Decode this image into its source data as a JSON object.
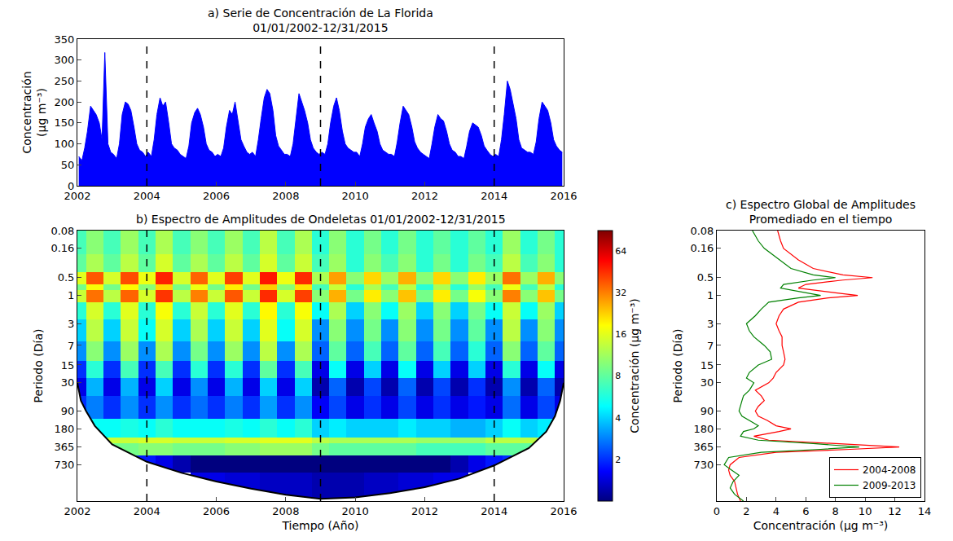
{
  "chart_data": [
    {
      "type": "area",
      "title": "a) Serie de Concentración de La Florida\n01/01/2002-12/31/2015",
      "ylabel": "Concentración\n(μg m⁻³)",
      "color": "#0000ff",
      "x": [
        2002.04,
        2002.13,
        2002.21,
        2002.29,
        2002.38,
        2002.46,
        2002.54,
        2002.63,
        2002.71,
        2002.79,
        2002.88,
        2002.96,
        2003.04,
        2003.13,
        2003.21,
        2003.29,
        2003.38,
        2003.46,
        2003.54,
        2003.63,
        2003.71,
        2003.79,
        2003.88,
        2003.96,
        2004.04,
        2004.13,
        2004.21,
        2004.29,
        2004.38,
        2004.46,
        2004.54,
        2004.63,
        2004.71,
        2004.79,
        2004.88,
        2004.96,
        2005.04,
        2005.13,
        2005.21,
        2005.29,
        2005.38,
        2005.46,
        2005.54,
        2005.63,
        2005.71,
        2005.79,
        2005.88,
        2005.96,
        2006.04,
        2006.13,
        2006.21,
        2006.29,
        2006.38,
        2006.46,
        2006.54,
        2006.63,
        2006.71,
        2006.79,
        2006.88,
        2006.96,
        2007.04,
        2007.13,
        2007.21,
        2007.29,
        2007.38,
        2007.46,
        2007.54,
        2007.63,
        2007.71,
        2007.79,
        2007.88,
        2007.96,
        2008.04,
        2008.13,
        2008.21,
        2008.29,
        2008.38,
        2008.46,
        2008.54,
        2008.63,
        2008.71,
        2008.79,
        2008.88,
        2008.96,
        2009.04,
        2009.13,
        2009.21,
        2009.29,
        2009.38,
        2009.46,
        2009.54,
        2009.63,
        2009.71,
        2009.79,
        2009.88,
        2009.96,
        2010.04,
        2010.13,
        2010.21,
        2010.29,
        2010.38,
        2010.46,
        2010.54,
        2010.63,
        2010.71,
        2010.79,
        2010.88,
        2010.96,
        2011.04,
        2011.13,
        2011.21,
        2011.29,
        2011.38,
        2011.46,
        2011.54,
        2011.63,
        2011.71,
        2011.79,
        2011.88,
        2011.96,
        2012.04,
        2012.13,
        2012.21,
        2012.29,
        2012.38,
        2012.46,
        2012.54,
        2012.63,
        2012.71,
        2012.79,
        2012.88,
        2012.96,
        2013.04,
        2013.13,
        2013.21,
        2013.29,
        2013.38,
        2013.46,
        2013.54,
        2013.63,
        2013.71,
        2013.79,
        2013.88,
        2013.96,
        2014.04,
        2014.13,
        2014.21,
        2014.29,
        2014.38,
        2014.46,
        2014.54,
        2014.63,
        2014.71,
        2014.79,
        2014.88,
        2014.96,
        2015.04,
        2015.13,
        2015.21,
        2015.29,
        2015.38,
        2015.46,
        2015.54,
        2015.63,
        2015.71,
        2015.79,
        2015.88,
        2015.96
      ],
      "values": [
        70,
        60,
        90,
        130,
        190,
        180,
        170,
        150,
        110,
        318,
        100,
        80,
        75,
        65,
        100,
        170,
        200,
        195,
        180,
        140,
        100,
        85,
        80,
        70,
        80,
        70,
        110,
        170,
        210,
        190,
        200,
        150,
        100,
        90,
        85,
        75,
        70,
        65,
        95,
        150,
        175,
        185,
        170,
        140,
        100,
        85,
        80,
        70,
        75,
        70,
        90,
        140,
        180,
        170,
        200,
        150,
        110,
        95,
        80,
        75,
        80,
        70,
        110,
        160,
        210,
        230,
        220,
        180,
        120,
        95,
        85,
        75,
        75,
        70,
        100,
        160,
        220,
        200,
        180,
        150,
        110,
        90,
        80,
        75,
        80,
        75,
        100,
        150,
        190,
        210,
        180,
        130,
        100,
        90,
        85,
        80,
        80,
        70,
        100,
        140,
        160,
        170,
        150,
        130,
        100,
        85,
        80,
        75,
        75,
        70,
        105,
        150,
        190,
        180,
        170,
        140,
        105,
        90,
        80,
        75,
        70,
        65,
        100,
        140,
        170,
        160,
        155,
        130,
        100,
        85,
        80,
        70,
        70,
        65,
        95,
        130,
        150,
        145,
        140,
        120,
        95,
        85,
        75,
        70,
        75,
        70,
        110,
        170,
        250,
        230,
        200,
        160,
        110,
        90,
        85,
        80,
        80,
        75,
        105,
        160,
        200,
        190,
        180,
        150,
        110,
        95,
        85,
        80
      ],
      "xlim": [
        2002,
        2016
      ],
      "xticks": [
        2002,
        2004,
        2006,
        2008,
        2010,
        2012,
        2014,
        2016
      ],
      "ylim": [
        0,
        350
      ],
      "yticks": [
        0,
        50,
        100,
        150,
        200,
        250,
        300,
        350
      ],
      "vlines": [
        2004,
        2009,
        2014
      ]
    },
    {
      "type": "heatmap",
      "title": "b) Espectro de Amplitudes de Ondeletas 01/01/2002-12/31/2015",
      "xlabel": "Tiempo (Año)",
      "ylabel": "Periodo (Día)",
      "log": "y",
      "time_bins": [
        2002,
        2002.25,
        2002.75,
        2003.25,
        2003.75,
        2004.25,
        2004.75,
        2005.25,
        2005.75,
        2006.25,
        2006.75,
        2007.25,
        2007.75,
        2008.25,
        2008.75,
        2009.25,
        2009.75,
        2010.25,
        2010.75,
        2011.25,
        2011.75,
        2012.25,
        2012.75,
        2013.25,
        2013.75,
        2014.25,
        2014.75,
        2015.25,
        2015.75,
        2016
      ],
      "period_bins": [
        0.08,
        0.2,
        0.4,
        0.65,
        0.8,
        1.3,
        2.5,
        6,
        13,
        25,
        50,
        120,
        250,
        320,
        500,
        1000,
        3000
      ],
      "cells": [
        [
          7,
          10,
          7,
          11,
          7,
          12,
          7,
          10,
          7,
          11,
          7,
          13,
          7,
          12,
          6,
          10,
          6,
          9,
          6,
          9,
          6,
          8,
          6,
          8,
          6,
          11,
          6,
          9,
          6
        ],
        [
          8,
          12,
          8,
          13,
          8,
          15,
          8,
          12,
          8,
          13,
          8,
          15,
          8,
          14,
          7,
          11,
          6,
          10,
          7,
          10,
          6,
          9,
          6,
          9,
          7,
          13,
          7,
          10,
          6
        ],
        [
          16,
          38,
          15,
          40,
          17,
          48,
          15,
          36,
          16,
          42,
          16,
          50,
          17,
          46,
          12,
          28,
          10,
          22,
          11,
          26,
          10,
          22,
          10,
          20,
          11,
          34,
          11,
          26,
          10
        ],
        [
          9,
          18,
          9,
          19,
          10,
          22,
          9,
          17,
          9,
          20,
          9,
          23,
          10,
          21,
          7,
          14,
          6,
          12,
          7,
          13,
          6,
          12,
          6,
          11,
          7,
          17,
          7,
          13,
          6
        ],
        [
          14,
          34,
          13,
          36,
          15,
          44,
          13,
          32,
          14,
          38,
          14,
          46,
          15,
          42,
          10,
          26,
          9,
          20,
          10,
          24,
          9,
          20,
          9,
          18,
          10,
          32,
          10,
          24,
          9
        ],
        [
          6,
          15,
          6,
          16,
          6,
          18,
          6,
          14,
          6,
          16,
          6,
          19,
          6,
          18,
          5,
          12,
          4,
          10,
          5,
          11,
          4,
          10,
          4,
          9,
          5,
          14,
          5,
          11,
          4
        ],
        [
          4,
          13,
          4,
          14,
          5,
          15,
          4,
          12,
          4,
          14,
          4,
          16,
          5,
          15,
          3,
          10,
          3,
          9,
          3,
          10,
          3,
          9,
          3,
          8,
          3,
          13,
          3,
          10,
          3
        ],
        [
          3,
          10,
          3,
          11,
          3,
          12,
          3,
          9,
          3,
          11,
          3,
          13,
          3,
          12,
          2.5,
          8,
          2.5,
          7,
          2.5,
          8,
          2.5,
          7,
          2.5,
          6,
          2.5,
          10,
          2.5,
          8,
          2.5
        ],
        [
          2,
          6,
          2,
          7,
          2,
          7,
          2,
          6,
          2,
          6,
          2,
          8,
          2,
          7,
          1.5,
          5,
          1.5,
          4,
          1.5,
          5,
          1.5,
          4,
          1.5,
          4,
          1.5,
          6,
          1.5,
          5,
          1.5
        ],
        [
          1.5,
          3.5,
          1.5,
          3.5,
          1.5,
          4,
          1.5,
          3,
          1.5,
          3.5,
          1.5,
          4,
          1.5,
          4,
          1.2,
          2.5,
          1.2,
          2.2,
          1.2,
          2.5,
          1.2,
          2.2,
          1.2,
          2,
          1.2,
          3,
          1.2,
          2.5,
          1.2
        ],
        [
          2,
          2.8,
          2,
          3,
          2,
          3,
          2,
          2.6,
          2,
          2.8,
          2,
          3.2,
          2,
          3,
          1.6,
          2.2,
          1.5,
          2,
          1.5,
          2.2,
          1.5,
          2,
          1.5,
          1.8,
          1.5,
          2.6,
          1.5,
          2.2,
          1.5
        ],
        [
          null,
          5,
          5,
          5.5,
          5,
          6,
          5,
          5,
          5,
          5.5,
          5,
          6,
          5,
          6,
          4,
          4.5,
          4,
          4,
          4,
          4.5,
          4,
          4,
          3.5,
          3.5,
          4,
          5,
          4,
          4.5,
          null
        ],
        [
          null,
          null,
          14,
          14,
          15,
          15,
          14,
          14,
          14,
          15,
          15,
          16,
          16,
          16,
          13,
          12,
          12,
          12,
          12,
          12,
          11,
          11,
          11,
          11,
          13,
          13,
          13,
          null,
          null
        ],
        [
          null,
          null,
          9,
          9,
          10,
          10,
          9,
          9,
          9,
          10,
          10,
          11,
          11,
          11,
          9,
          8,
          8,
          8,
          8,
          8,
          7,
          7,
          7,
          7,
          8,
          8,
          8,
          null,
          null
        ],
        [
          null,
          null,
          null,
          2,
          1.8,
          1.5,
          1.2,
          1,
          1,
          1,
          1,
          0.9,
          0.9,
          0.9,
          0.8,
          0.8,
          0.8,
          0.9,
          1,
          1,
          1,
          1,
          1.2,
          1.5,
          1.8,
          2,
          null,
          null,
          null
        ],
        [
          null,
          null,
          null,
          null,
          null,
          null,
          null,
          1.5,
          1.5,
          1.4,
          1.4,
          1.3,
          1.3,
          1.3,
          1.2,
          1.2,
          1.2,
          1.3,
          1.3,
          1.4,
          1.4,
          1.5,
          1.5,
          null,
          null,
          null,
          null,
          null,
          null
        ]
      ],
      "colorbar": {
        "title": "Concentración (μg m⁻³)",
        "zlim": [
          1,
          90
        ],
        "zticks": [
          2,
          4,
          8,
          16,
          32,
          64
        ]
      },
      "cone_of_influence": {
        "x": [
          2002,
          2002.1,
          2002.25,
          2002.5,
          2003,
          2004,
          2005,
          2006,
          2007,
          2008,
          2009,
          2010,
          2011,
          2012,
          2013,
          2014,
          2015,
          2015.5,
          2015.75,
          2015.9,
          2016
        ],
        "y": [
          30,
          60,
          90,
          160,
          330,
          650,
          1000,
          1400,
          1850,
          2350,
          2750,
          2600,
          2200,
          1750,
          1250,
          750,
          380,
          200,
          110,
          60,
          30
        ]
      },
      "xlim": [
        2002,
        2016
      ],
      "xticks": [
        2002,
        2004,
        2006,
        2008,
        2010,
        2012,
        2014,
        2016
      ],
      "ylim": [
        3000,
        0.08
      ],
      "yticks": [
        0.08,
        0.16,
        0.5,
        1,
        3,
        7,
        15,
        30,
        90,
        180,
        365,
        730
      ],
      "vlines": [
        2004,
        2009,
        2014
      ]
    },
    {
      "type": "line",
      "title": "c) Espectro Global de Amplitudes\nPromediado en el tiempo",
      "xlabel": "Concentración (μg m⁻³)",
      "ylabel": "Periodo (Día)",
      "log": "y",
      "legend": "lower right",
      "y": [
        0.08,
        0.12,
        0.16,
        0.25,
        0.35,
        0.45,
        0.5,
        0.55,
        0.65,
        0.75,
        0.9,
        1,
        1.1,
        1.3,
        1.7,
        2.2,
        3,
        4,
        5,
        7,
        9,
        12,
        15,
        20,
        25,
        30,
        40,
        50,
        60,
        75,
        90,
        110,
        130,
        160,
        180,
        200,
        240,
        280,
        320,
        365,
        400,
        450,
        550,
        730,
        900,
        1100,
        1400,
        1800,
        2300,
        3000
      ],
      "series": [
        {
          "name": "2004-2008",
          "color": "#ff0000",
          "values": [
            4.1,
            4.3,
            4.5,
            5.5,
            6.5,
            8.5,
            10.5,
            8.5,
            6,
            5.5,
            8,
            9.5,
            7.5,
            5.5,
            4.5,
            4.2,
            4,
            4.2,
            4.4,
            4.4,
            4.5,
            4.6,
            4.5,
            4,
            3.8,
            3.5,
            2.6,
            3,
            3.2,
            2.8,
            2.6,
            2.8,
            3.4,
            4,
            5,
            4.2,
            2.5,
            3.5,
            8,
            12.3,
            9,
            4,
            1.5,
            0.9,
            0.8,
            0.9,
            1.2,
            1.3,
            1.4,
            1.6
          ]
        },
        {
          "name": "2009-2013",
          "color": "#008000",
          "values": [
            2.4,
            2.8,
            3.2,
            4.2,
            5,
            6.5,
            8,
            6.5,
            4.5,
            4.3,
            6,
            7,
            5.5,
            3.5,
            3,
            2.6,
            2,
            2.2,
            2.5,
            3.2,
            3.6,
            3.7,
            2.8,
            2.2,
            2,
            2.5,
            2.2,
            1.8,
            1.7,
            1.6,
            1.5,
            1.7,
            2.2,
            2.8,
            2.5,
            1.8,
            1.6,
            2.8,
            6.5,
            9.6,
            7,
            3,
            0.8,
            0.5,
            1,
            1.5,
            1.1,
            0.9,
            1.2,
            1.8
          ]
        }
      ],
      "xlim": [
        0,
        14
      ],
      "xticks": [
        0,
        2,
        4,
        6,
        8,
        10,
        12,
        14
      ],
      "ylim": [
        3000,
        0.08
      ],
      "yticks": [
        0.08,
        0.16,
        0.5,
        1,
        3,
        7,
        15,
        30,
        90,
        180,
        365,
        730
      ]
    }
  ]
}
